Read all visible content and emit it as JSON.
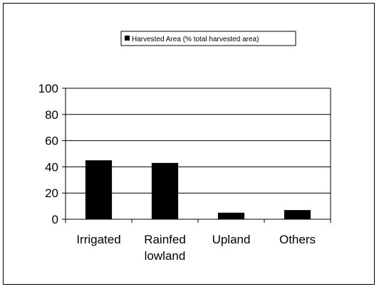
{
  "chart_data": {
    "type": "bar",
    "categories": [
      "Irrigated",
      "Rainfed lowland",
      "Upland",
      "Others"
    ],
    "category_lines": [
      [
        "Irrigated"
      ],
      [
        "Rainfed",
        "lowland"
      ],
      [
        "Upland"
      ],
      [
        "Others"
      ]
    ],
    "series": [
      {
        "name": "Harvested Area (% total harvested area)",
        "values": [
          45,
          43,
          5,
          7
        ],
        "color": "#000000"
      }
    ],
    "ylim": [
      0,
      100
    ],
    "yticks": [
      0,
      20,
      40,
      60,
      80,
      100
    ],
    "grid": true,
    "legend": "top-center",
    "title": "",
    "xlabel": "",
    "ylabel": ""
  }
}
